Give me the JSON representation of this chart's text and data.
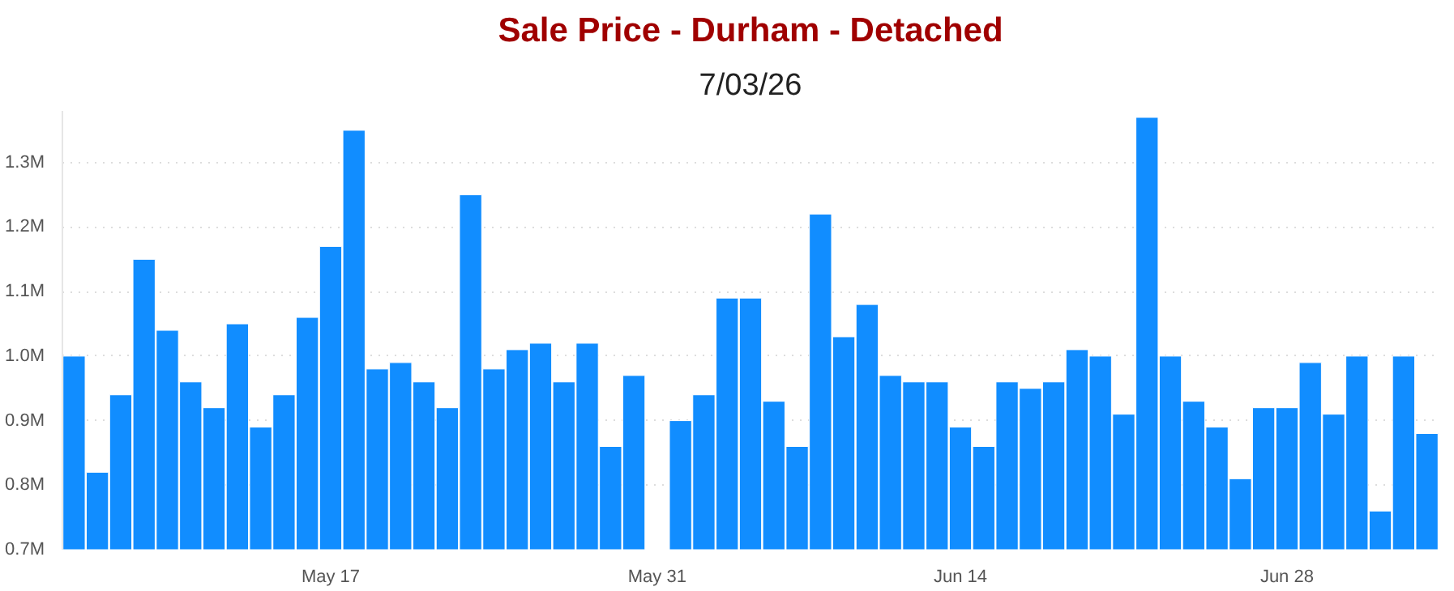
{
  "chart_data": {
    "type": "bar",
    "title": "Sale Price - Durham - Detached",
    "subtitle": "7/03/26",
    "categories": [
      null,
      null,
      null,
      null,
      null,
      null,
      null,
      null,
      null,
      null,
      null,
      "May 17",
      null,
      null,
      null,
      null,
      null,
      null,
      null,
      null,
      null,
      null,
      null,
      null,
      null,
      "May 31",
      null,
      null,
      null,
      null,
      null,
      null,
      null,
      null,
      null,
      null,
      null,
      null,
      "Jun 14",
      null,
      null,
      null,
      null,
      null,
      null,
      null,
      null,
      null,
      null,
      null,
      null,
      null,
      "Jun 28",
      null,
      null,
      null,
      null,
      null,
      null
    ],
    "series": [
      {
        "color": "#118dff",
        "values": [
          1.0,
          0.82,
          0.94,
          1.15,
          1.04,
          0.96,
          0.92,
          1.05,
          0.89,
          0.94,
          1.06,
          1.17,
          1.35,
          0.98,
          0.99,
          0.96,
          0.92,
          1.25,
          0.98,
          1.01,
          1.02,
          0.96,
          1.02,
          0.86,
          0.97,
          null,
          0.9,
          0.94,
          1.09,
          1.09,
          0.93,
          0.86,
          1.22,
          1.03,
          1.08,
          0.97,
          0.96,
          0.96,
          0.89,
          0.86,
          0.96,
          0.95,
          0.96,
          1.01,
          1.0,
          0.91,
          1.37,
          1.0,
          0.93,
          0.89,
          0.81,
          0.92,
          0.92,
          0.99,
          0.91,
          1.0,
          0.76,
          1.0,
          0.88
        ]
      }
    ],
    "ylim": [
      0.7,
      1.38
    ],
    "yticks": [
      {
        "value": 0.7,
        "label": "0.7M"
      },
      {
        "value": 0.8,
        "label": "0.8M"
      },
      {
        "value": 0.9,
        "label": "0.9M"
      },
      {
        "value": 1.0,
        "label": "1.0M"
      },
      {
        "value": 1.1,
        "label": "1.1M"
      },
      {
        "value": 1.2,
        "label": "1.2M"
      },
      {
        "value": 1.3,
        "label": "1.3M"
      }
    ],
    "grid": "y"
  }
}
